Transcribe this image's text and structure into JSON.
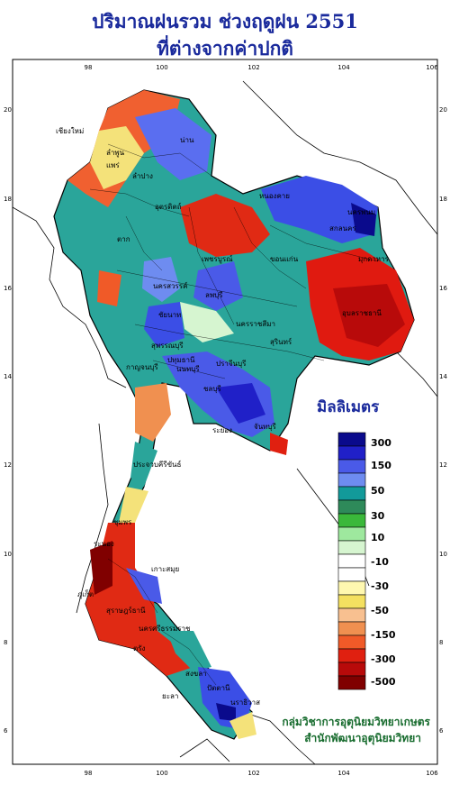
{
  "title_line1": "ปริมาณฝนรวม ช่วงฤดูฝน 2551",
  "title_line2": "ที่ต่างจากค่าปกติ",
  "unit_label": "มิลลิเมตร",
  "credit_line1": "กลุ่มวิชาการอุตุนิยมวิทยาเกษตร",
  "credit_line2": "สำนักพัฒนาอุตุนิยมวิทยา",
  "axis": {
    "lon_ticks": [
      "98",
      "100",
      "102",
      "104",
      "106"
    ],
    "lat_ticks": [
      "20",
      "18",
      "16",
      "14",
      "12",
      "10",
      "8",
      "6"
    ]
  },
  "legend": {
    "labels": [
      "300",
      "150",
      "50",
      "30",
      "10",
      "-10",
      "-30",
      "-50",
      "-150",
      "-300",
      "-500"
    ],
    "colors": [
      "#0a0a8c",
      "#2020c8",
      "#4a5ae8",
      "#6e8cf0",
      "#129a9a",
      "#2e8a5a",
      "#3ab83a",
      "#9ee89e",
      "#d6f5d0",
      "#ffffff",
      "#ffffff",
      "#fff8b0",
      "#f4e060",
      "#f8c090",
      "#f09050",
      "#f05a28",
      "#e02010",
      "#b80a0a",
      "#800000"
    ]
  },
  "place_labels": [
    "เชียงใหม่",
    "ลำพูน",
    "น่าน",
    "แพร่",
    "ลำปาง",
    "ตาก",
    "อุตรดิตถ์",
    "หนองคาย",
    "นครพนม",
    "สกลนคร",
    "มุกดาหาร",
    "ขอนแก่น",
    "เพชรบูรณ์",
    "นครสวรรค์",
    "ลพบุรี",
    "นครราชสีมา",
    "สุรินทร์",
    "อุบลราชธานี",
    "ชัยนาท",
    "สุพรรณบุรี",
    "กาญจนบุรี",
    "นนทบุรี",
    "ปทุมธานี",
    "ปราจีนบุรี",
    "ชลบุรี",
    "ระยอง",
    "จันทบุรี",
    "ประจวบคีรีขันธ์",
    "ชุมพร",
    "ระนอง",
    "สุราษฎร์ธานี",
    "ภูเก็ต",
    "นครศรีธรรมราช",
    "สงขลา",
    "ปัตตานี",
    "นราธิวาส",
    "ยะลา",
    "ตรัง",
    "เกาะสมุย"
  ]
}
